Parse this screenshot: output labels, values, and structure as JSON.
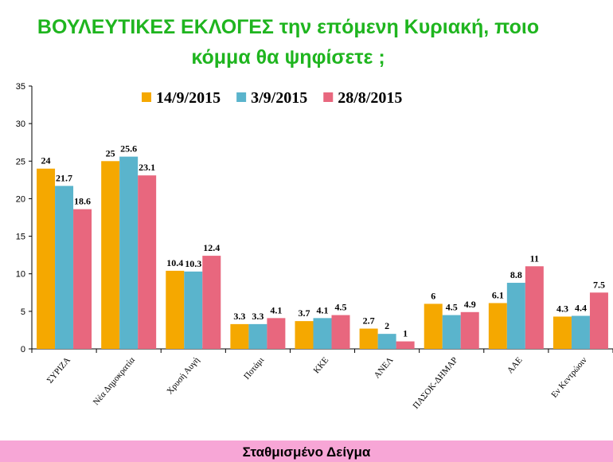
{
  "chart_data": {
    "type": "bar",
    "title": [
      "ΒΟΥΛΕΥΤΙΚΕΣ   ΕΚΛΟΓΕΣ  την επόμενη Κυριακή, ποιο",
      "κόμμα θα ψηφίσετε ;"
    ],
    "footer": "Σταθμισμένο Δείγμα",
    "categories": [
      "ΣΥΡΙΖΑ",
      "Νέα Δημοκρατία",
      "Χρυσή Αυγή",
      "Ποτάμι",
      "ΚΚΕ",
      "ΑΝΕΛ",
      "ΠΑΣΟΚ-ΔΗΜΑΡ",
      "ΑΑΕ",
      "Εν Κεντρώοιν"
    ],
    "series": [
      {
        "name": "14/9/2015",
        "color": "#f5a800",
        "values": [
          24,
          25,
          10.4,
          3.3,
          3.7,
          2.7,
          6,
          6.1,
          4.3
        ]
      },
      {
        "name": "3/9/2015",
        "color": "#5ab4cc",
        "values": [
          21.7,
          25.6,
          10.3,
          3.3,
          4.1,
          2,
          4.5,
          8.8,
          4.4
        ]
      },
      {
        "name": "28/8/2015",
        "color": "#e8677e",
        "values": [
          18.6,
          23.1,
          12.4,
          4.1,
          4.5,
          1,
          4.9,
          11,
          7.5
        ]
      }
    ],
    "ylim": [
      0,
      35
    ],
    "yticks": [
      0,
      5,
      10,
      15,
      20,
      25,
      30,
      35
    ],
    "grid": false,
    "legend": "top"
  }
}
